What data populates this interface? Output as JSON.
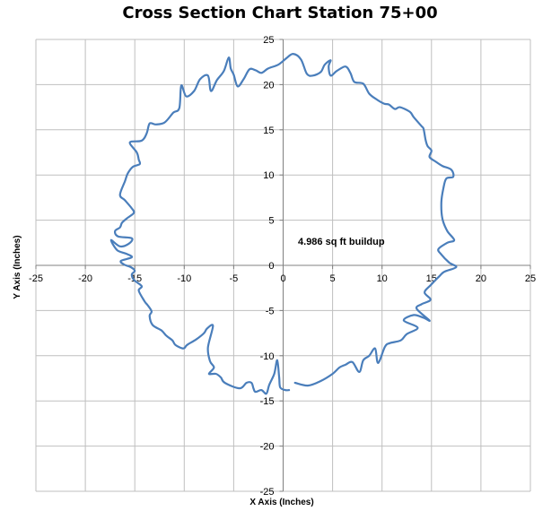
{
  "chart_data": {
    "type": "scatter",
    "title": "Cross Section Chart Station 75+00",
    "xlabel": "X Axis (Inches)",
    "ylabel": "Y Axis (Inches)",
    "xlim": [
      -25,
      25
    ],
    "ylim": [
      -25,
      25
    ],
    "x_ticks": [
      -25,
      -20,
      -15,
      -10,
      -5,
      0,
      5,
      10,
      15,
      20,
      25
    ],
    "y_ticks": [
      -25,
      -20,
      -15,
      -10,
      -5,
      0,
      5,
      10,
      15,
      20,
      25
    ],
    "grid": true,
    "line_color": "#4A7EBB",
    "annotations": [
      {
        "text": "4.986 sq ft buildup",
        "x": 1.5,
        "y": 2.3
      }
    ],
    "series": [
      {
        "points": [
          [
            1.2,
            -13.0
          ],
          [
            2.5,
            -13.3
          ],
          [
            3.8,
            -12.8
          ],
          [
            5.0,
            -12.0
          ],
          [
            5.7,
            -11.3
          ],
          [
            6.3,
            -11.0
          ],
          [
            7.0,
            -10.7
          ],
          [
            7.7,
            -11.8
          ],
          [
            8.1,
            -10.5
          ],
          [
            8.7,
            -10.0
          ],
          [
            9.3,
            -9.2
          ],
          [
            9.6,
            -10.8
          ],
          [
            10.3,
            -9.0
          ],
          [
            10.8,
            -8.6
          ],
          [
            11.9,
            -8.3
          ],
          [
            12.5,
            -7.6
          ],
          [
            13.6,
            -6.9
          ],
          [
            12.2,
            -6.1
          ],
          [
            13.2,
            -5.5
          ],
          [
            14.2,
            -5.8
          ],
          [
            14.8,
            -6.1
          ],
          [
            13.5,
            -4.8
          ],
          [
            14.0,
            -4.3
          ],
          [
            14.9,
            -3.8
          ],
          [
            14.3,
            -3.0
          ],
          [
            14.9,
            -2.2
          ],
          [
            15.8,
            -1.2
          ],
          [
            16.3,
            -0.7
          ],
          [
            17.5,
            -0.2
          ],
          [
            16.8,
            0.3
          ],
          [
            16.0,
            1.2
          ],
          [
            15.7,
            1.8
          ],
          [
            16.6,
            2.5
          ],
          [
            17.3,
            2.8
          ],
          [
            16.6,
            3.8
          ],
          [
            16.1,
            5.2
          ],
          [
            16.0,
            7.0
          ],
          [
            16.2,
            8.5
          ],
          [
            16.5,
            9.6
          ],
          [
            17.2,
            9.8
          ],
          [
            17.0,
            10.6
          ],
          [
            16.1,
            11.0
          ],
          [
            15.4,
            11.5
          ],
          [
            14.8,
            12.0
          ],
          [
            15.0,
            12.7
          ],
          [
            14.6,
            13.2
          ],
          [
            14.4,
            13.9
          ],
          [
            14.2,
            15.1
          ],
          [
            14.0,
            15.4
          ],
          [
            13.2,
            16.4
          ],
          [
            12.8,
            17.0
          ],
          [
            11.8,
            17.5
          ],
          [
            11.3,
            17.3
          ],
          [
            10.7,
            17.8
          ],
          [
            10.2,
            17.9
          ],
          [
            9.4,
            18.4
          ],
          [
            8.7,
            19.0
          ],
          [
            8.1,
            20.1
          ],
          [
            7.2,
            20.3
          ],
          [
            6.8,
            21.3
          ],
          [
            6.3,
            22.0
          ],
          [
            5.4,
            21.5
          ],
          [
            4.8,
            21.0
          ],
          [
            4.6,
            22.0
          ],
          [
            4.8,
            22.7
          ],
          [
            4.2,
            22.2
          ],
          [
            3.8,
            21.4
          ],
          [
            3.0,
            21.0
          ],
          [
            2.4,
            21.2
          ],
          [
            1.8,
            22.8
          ],
          [
            1.0,
            23.4
          ],
          [
            0.3,
            22.9
          ],
          [
            -0.5,
            22.2
          ],
          [
            -1.5,
            21.8
          ],
          [
            -2.2,
            21.3
          ],
          [
            -2.8,
            21.6
          ],
          [
            -3.4,
            21.7
          ],
          [
            -4.0,
            20.6
          ],
          [
            -4.6,
            19.8
          ],
          [
            -5.0,
            21.1
          ],
          [
            -5.3,
            21.8
          ],
          [
            -5.5,
            23.0
          ],
          [
            -6.0,
            21.5
          ],
          [
            -6.7,
            20.5
          ],
          [
            -7.3,
            19.3
          ],
          [
            -7.6,
            21.0
          ],
          [
            -8.4,
            20.6
          ],
          [
            -9.0,
            19.3
          ],
          [
            -9.8,
            18.7
          ],
          [
            -10.3,
            19.9
          ],
          [
            -10.5,
            17.4
          ],
          [
            -11.1,
            16.9
          ],
          [
            -12.0,
            15.8
          ],
          [
            -12.9,
            15.6
          ],
          [
            -13.5,
            15.7
          ],
          [
            -13.8,
            14.6
          ],
          [
            -14.3,
            13.8
          ],
          [
            -15.5,
            13.6
          ],
          [
            -14.8,
            12.5
          ],
          [
            -14.6,
            11.7
          ],
          [
            -14.5,
            11.2
          ],
          [
            -15.2,
            10.9
          ],
          [
            -15.7,
            10.2
          ],
          [
            -16.0,
            9.3
          ],
          [
            -16.5,
            7.8
          ],
          [
            -16.0,
            7.2
          ],
          [
            -15.3,
            6.3
          ],
          [
            -15.1,
            5.8
          ],
          [
            -15.8,
            5.2
          ],
          [
            -16.3,
            4.7
          ],
          [
            -16.5,
            4.2
          ],
          [
            -17.0,
            3.8
          ],
          [
            -16.7,
            3.2
          ],
          [
            -15.3,
            3.0
          ],
          [
            -15.6,
            2.4
          ],
          [
            -16.5,
            2.1
          ],
          [
            -17.4,
            2.8
          ],
          [
            -16.8,
            1.7
          ],
          [
            -15.9,
            1.3
          ],
          [
            -15.3,
            0.9
          ],
          [
            -16.4,
            0.5
          ],
          [
            -16.1,
            0.1
          ],
          [
            -15.4,
            -0.2
          ],
          [
            -15.0,
            -0.6
          ],
          [
            -15.3,
            -1.0
          ],
          [
            -15.1,
            -1.6
          ],
          [
            -14.3,
            -2.3
          ],
          [
            -14.6,
            -2.8
          ],
          [
            -14.0,
            -4.0
          ],
          [
            -13.7,
            -4.4
          ],
          [
            -13.3,
            -5.1
          ],
          [
            -13.5,
            -5.6
          ],
          [
            -13.2,
            -6.6
          ],
          [
            -12.3,
            -7.2
          ],
          [
            -11.8,
            -7.8
          ],
          [
            -11.2,
            -8.3
          ],
          [
            -10.9,
            -8.8
          ],
          [
            -10.1,
            -9.2
          ],
          [
            -9.7,
            -8.8
          ],
          [
            -8.8,
            -8.2
          ],
          [
            -8.0,
            -7.5
          ],
          [
            -7.7,
            -7.0
          ],
          [
            -7.1,
            -6.7
          ],
          [
            -7.6,
            -9.1
          ],
          [
            -7.4,
            -10.6
          ],
          [
            -7.0,
            -11.3
          ],
          [
            -7.5,
            -12.0
          ],
          [
            -6.8,
            -12.0
          ],
          [
            -6.3,
            -12.4
          ],
          [
            -5.9,
            -13.0
          ],
          [
            -4.4,
            -13.6
          ],
          [
            -3.7,
            -13.0
          ],
          [
            -3.2,
            -13.0
          ],
          [
            -3.0,
            -13.6
          ],
          [
            -2.8,
            -14.0
          ],
          [
            -2.2,
            -13.8
          ],
          [
            -1.7,
            -14.2
          ],
          [
            -1.4,
            -13.2
          ],
          [
            -0.9,
            -12.0
          ],
          [
            -0.6,
            -10.5
          ],
          [
            -0.4,
            -12.4
          ],
          [
            -0.3,
            -13.5
          ],
          [
            0.2,
            -13.8
          ],
          [
            0.6,
            -13.8
          ]
        ]
      }
    ]
  }
}
